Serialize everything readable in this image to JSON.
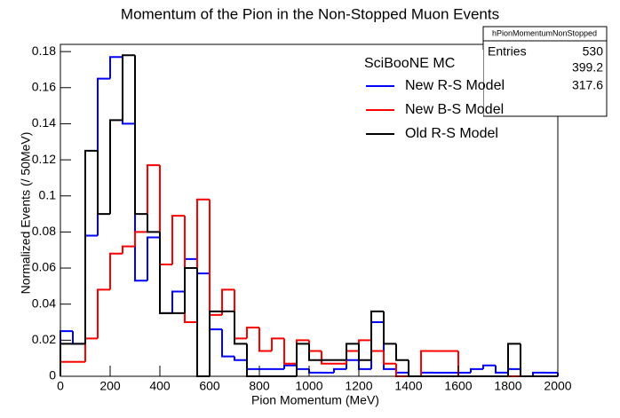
{
  "chart_data": {
    "type": "histogram",
    "title": "Momentum of the Pion in the Non-Stopped Muon Events",
    "x_label": "Pion Momentum (MeV)",
    "y_label": "Normalized Events (/ 50MeV)",
    "bins": [
      0,
      50,
      100,
      150,
      200,
      250,
      300,
      350,
      400,
      450,
      500,
      550,
      600,
      650,
      700,
      750,
      800,
      850,
      900,
      950,
      1000,
      1050,
      1100,
      1150,
      1200,
      1250,
      1300,
      1350,
      1400,
      1450,
      1500,
      1550,
      1600,
      1650,
      1700,
      1750,
      1800,
      1850,
      1900,
      1950,
      2000
    ],
    "series": [
      {
        "name": "New R-S Model",
        "color": "#0000ff",
        "values": [
          0.025,
          0.018,
          0.078,
          0.165,
          0.177,
          0.14,
          0.053,
          0.077,
          0.035,
          0.047,
          0.065,
          0.057,
          0.026,
          0.011,
          0.009,
          0.004,
          0.004,
          0.004,
          0.006,
          0.004,
          0.002,
          0.002,
          0.004,
          0.009,
          0.004,
          0.03,
          0.004,
          0.002,
          0,
          0.002,
          0.002,
          0.002,
          0.002,
          0.004,
          0.006,
          0.002,
          0.004,
          0,
          0.002,
          0.002
        ]
      },
      {
        "name": "New B-S Model",
        "color": "#ff0000",
        "values": [
          0.008,
          0.008,
          0.021,
          0.048,
          0.068,
          0.072,
          0.08,
          0.117,
          0.062,
          0.089,
          0.03,
          0.098,
          0.034,
          0.048,
          0.021,
          0.027,
          0.014,
          0.021,
          0.007,
          0.02,
          0.014,
          0.007,
          0.007,
          0.014,
          0.02,
          0.014,
          0.007,
          0,
          0,
          0.014,
          0.014,
          0.014,
          0,
          0,
          0,
          0,
          0,
          0,
          0,
          0
        ]
      },
      {
        "name": "Old R-S Model",
        "color": "#000000",
        "values": [
          0.018,
          0.018,
          0.125,
          0.09,
          0.142,
          0.178,
          0.09,
          0.08,
          0.035,
          0.035,
          0.06,
          0,
          0.036,
          0.036,
          0.018,
          0,
          0,
          0,
          0,
          0.018,
          0.009,
          0.009,
          0.009,
          0.018,
          0.009,
          0.036,
          0.018,
          0.009,
          0,
          0,
          0,
          0,
          0,
          0,
          0,
          0,
          0.018,
          0,
          0,
          0
        ]
      }
    ],
    "xlim": [
      0,
      2000
    ],
    "xticks": [
      0,
      200,
      400,
      600,
      800,
      1000,
      1200,
      1400,
      1600,
      1800,
      2000
    ],
    "ylim": [
      0,
      0.184
    ],
    "yticks": [
      0,
      0.02,
      0.04,
      0.06,
      0.08,
      0.1,
      0.12,
      0.14,
      0.16,
      0.18
    ],
    "legend_title": "SciBooNE MC",
    "legend_position": "top-right",
    "stats_title": "hPionMomentumNonStopped",
    "stats_entries_label": "Entries",
    "stats_values": [
      530,
      399.2,
      317.6
    ]
  }
}
